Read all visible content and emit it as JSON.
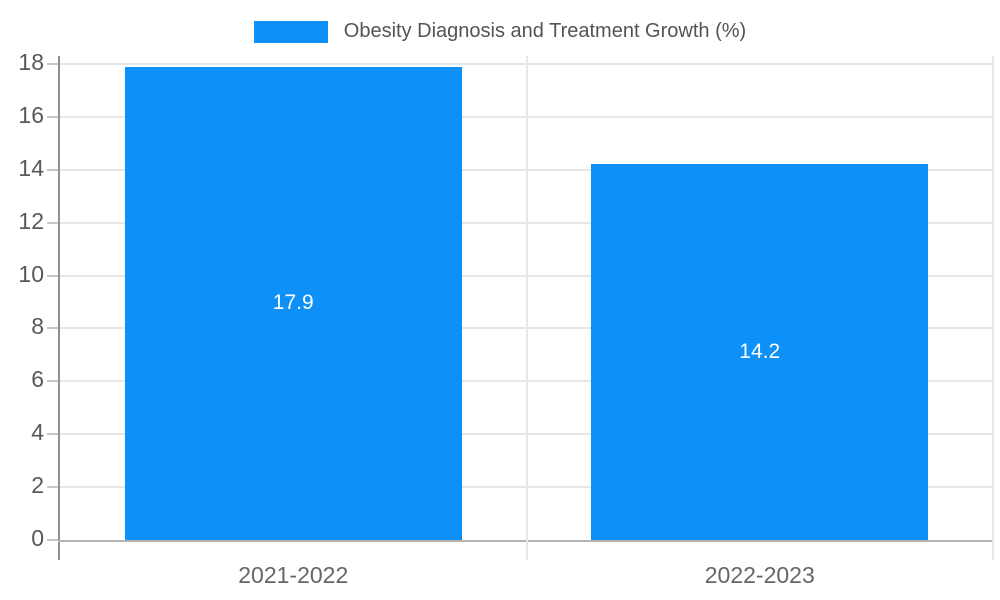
{
  "chart_data": {
    "type": "bar",
    "title": "Obesity Diagnosis and Treatment Growth (%)",
    "categories": [
      "2021-2022",
      "2022-2023"
    ],
    "values": [
      17.9,
      14.2
    ],
    "bar_value_labels": [
      "17.9",
      "14.2"
    ],
    "y_ticks": [
      0,
      2,
      4,
      6,
      8,
      10,
      12,
      14,
      16,
      18
    ],
    "ylim": [
      0,
      18.3
    ],
    "xlabel": "",
    "ylabel": "",
    "grid": true,
    "legend_position": "top-center"
  },
  "legend": {
    "label": "Obesity Diagnosis and Treatment Growth (%)"
  },
  "colors": {
    "bar": "#0d90f8",
    "grid": "#e7e7e7",
    "y_axis": "#8f8f8f",
    "x_axis": "#b3b3b3",
    "tick_mark": "#c6c6c6",
    "tick_text": "#595959",
    "category_text": "#666666",
    "legend_text": "#545454",
    "bar_value_text": "#ffffff",
    "background": "#ffffff"
  }
}
